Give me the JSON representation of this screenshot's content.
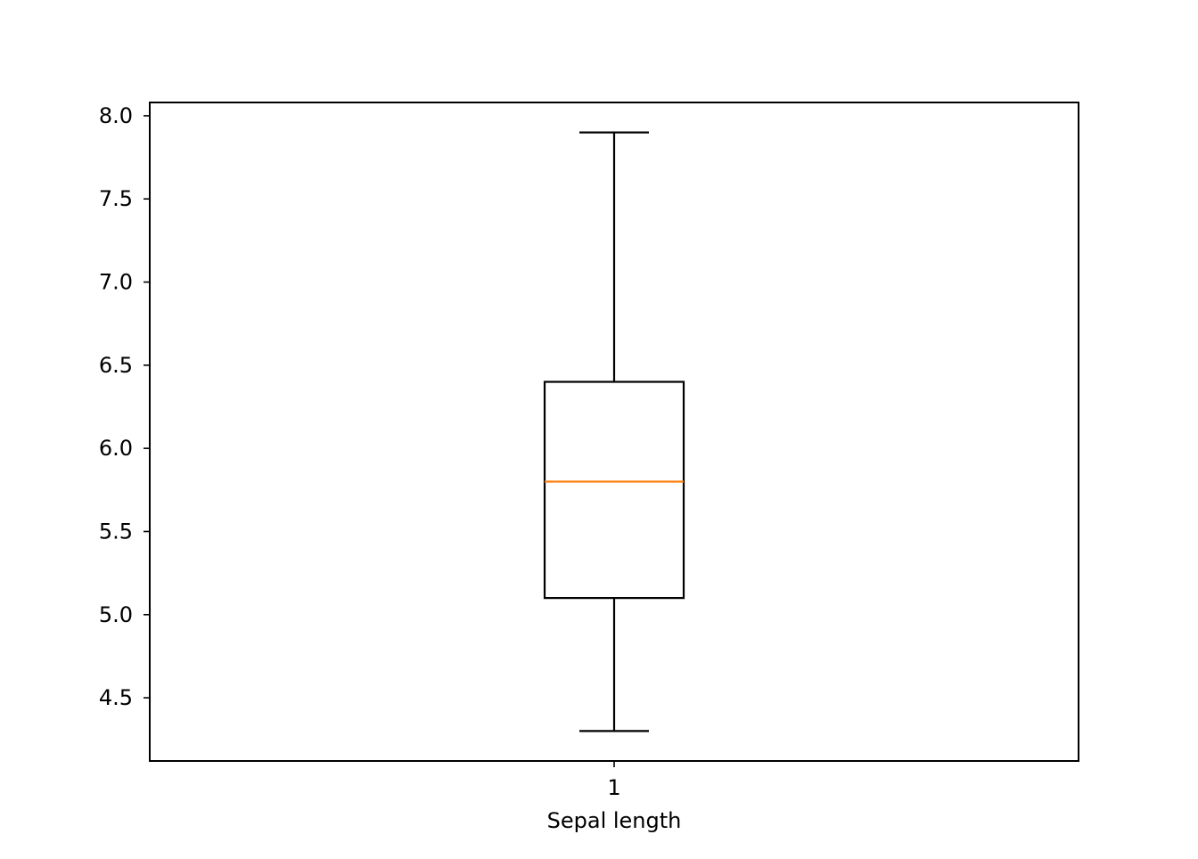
{
  "chart_data": {
    "type": "box",
    "title": "",
    "xlabel": "Sepal length",
    "ylabel": "",
    "ylim": [
      4.12,
      8.08
    ],
    "yticks": [
      4.5,
      5.0,
      5.5,
      6.0,
      6.5,
      7.0,
      7.5,
      8.0
    ],
    "ytick_labels": [
      "4.5",
      "5.0",
      "5.5",
      "6.0",
      "6.5",
      "7.0",
      "7.5",
      "8.0"
    ],
    "xticks": [
      1
    ],
    "xtick_labels": [
      "1"
    ],
    "grid": false,
    "boxes": [
      {
        "position": 1,
        "whisker_low": 4.3,
        "q1": 5.1,
        "median": 5.8,
        "q3": 6.4,
        "whisker_high": 7.9
      }
    ],
    "colors": {
      "box": "#000000",
      "median": "#ff7f0e",
      "axes": "#000000"
    }
  }
}
